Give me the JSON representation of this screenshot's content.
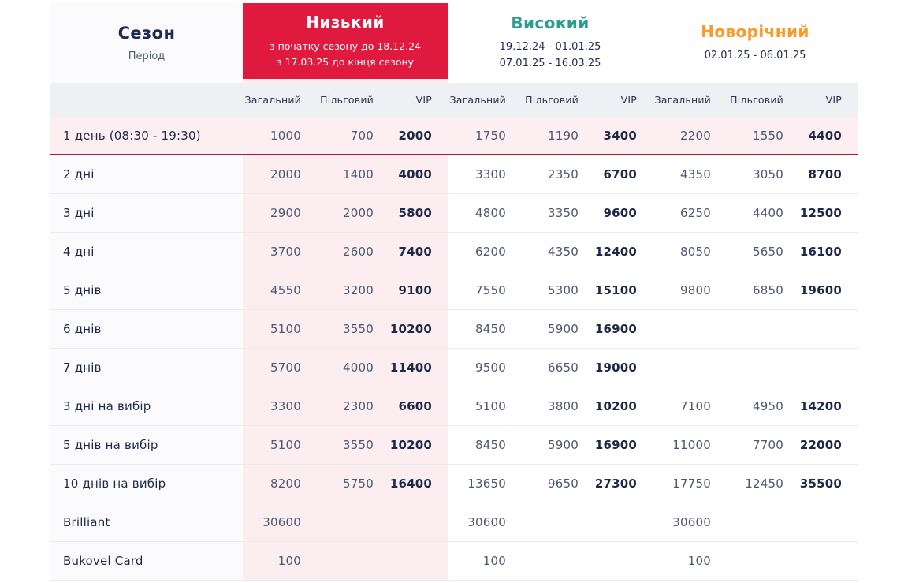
{
  "colors": {
    "accent_red": "#e0193f",
    "teal": "#2b9c8e",
    "orange": "#f89b2b",
    "highlight_border": "#9e1c45",
    "pink_column": "#fceef0",
    "highlight_row": "#fdeff1",
    "subheader_bg": "#eef0f3",
    "navy_text": "#1e2b4e"
  },
  "header": {
    "season_label": "Сезон",
    "period_label": "Період",
    "seasons": [
      {
        "name": "Низький",
        "filled": true,
        "color": "#e0193f",
        "dates": [
          "з початку сезону до 18.12.24",
          "з 17.03.25 до кінця сезону"
        ]
      },
      {
        "name": "Високий",
        "filled": false,
        "color": "#2b9c8e",
        "dates": [
          "19.12.24 - 01.01.25",
          "07.01.25 - 16.03.25"
        ]
      },
      {
        "name": "Новорічний",
        "filled": false,
        "color": "#f89b2b",
        "dates": [
          "02.01.25 - 06.01.25"
        ]
      }
    ],
    "price_columns": [
      "Загальний",
      "Пільговий",
      "VIP"
    ]
  },
  "rows": [
    {
      "label": "1 день (08:30 - 19:30)",
      "highlight": true,
      "values": [
        "1000",
        "700",
        "2000",
        "1750",
        "1190",
        "3400",
        "2200",
        "1550",
        "4400"
      ]
    },
    {
      "label": "2 дні",
      "highlight": false,
      "values": [
        "2000",
        "1400",
        "4000",
        "3300",
        "2350",
        "6700",
        "4350",
        "3050",
        "8700"
      ]
    },
    {
      "label": "3 дні",
      "highlight": false,
      "values": [
        "2900",
        "2000",
        "5800",
        "4800",
        "3350",
        "9600",
        "6250",
        "4400",
        "12500"
      ]
    },
    {
      "label": "4 дні",
      "highlight": false,
      "values": [
        "3700",
        "2600",
        "7400",
        "6200",
        "4350",
        "12400",
        "8050",
        "5650",
        "16100"
      ]
    },
    {
      "label": "5 днів",
      "highlight": false,
      "values": [
        "4550",
        "3200",
        "9100",
        "7550",
        "5300",
        "15100",
        "9800",
        "6850",
        "19600"
      ]
    },
    {
      "label": "6 днів",
      "highlight": false,
      "values": [
        "5100",
        "3550",
        "10200",
        "8450",
        "5900",
        "16900",
        "",
        "",
        ""
      ]
    },
    {
      "label": "7 днів",
      "highlight": false,
      "values": [
        "5700",
        "4000",
        "11400",
        "9500",
        "6650",
        "19000",
        "",
        "",
        ""
      ]
    },
    {
      "label": "3 дні на вибір",
      "highlight": false,
      "values": [
        "3300",
        "2300",
        "6600",
        "5100",
        "3800",
        "10200",
        "7100",
        "4950",
        "14200"
      ]
    },
    {
      "label": "5 днів на вибір",
      "highlight": false,
      "values": [
        "5100",
        "3550",
        "10200",
        "8450",
        "5900",
        "16900",
        "11000",
        "7700",
        "22000"
      ]
    },
    {
      "label": "10 днів на вибір",
      "highlight": false,
      "values": [
        "8200",
        "5750",
        "16400",
        "13650",
        "9650",
        "27300",
        "17750",
        "12450",
        "35500"
      ]
    },
    {
      "label": "Brilliant",
      "highlight": false,
      "values": [
        "30600",
        "",
        "",
        "30600",
        "",
        "",
        "30600",
        "",
        ""
      ]
    },
    {
      "label": "Bukovel Card",
      "highlight": false,
      "values": [
        "100",
        "",
        "",
        "100",
        "",
        "",
        "100",
        "",
        ""
      ]
    }
  ]
}
